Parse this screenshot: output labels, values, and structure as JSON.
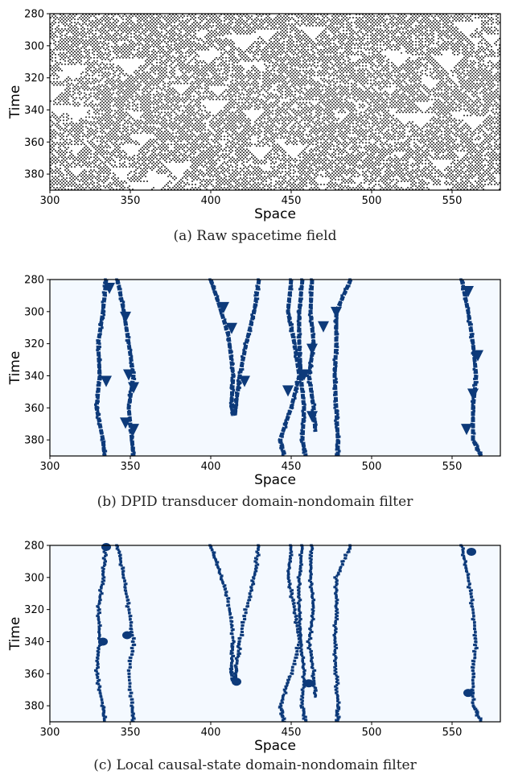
{
  "chart_data": [
    {
      "type": "heatmap",
      "panel_caption": "(a) Raw spacetime field",
      "xlabel": "Space",
      "ylabel": "Time",
      "xlim": [
        300,
        580
      ],
      "ylim": [
        390,
        280
      ],
      "xticks": [
        300,
        350,
        400,
        450,
        500,
        550
      ],
      "yticks": [
        280,
        300,
        320,
        340,
        360,
        380
      ],
      "colors": {
        "on": "#000000",
        "off": "#ffffff"
      },
      "description_of_values": "binary cellular automaton spacetime field, black dots and white triangles"
    },
    {
      "type": "heatmap",
      "panel_caption": "(b) DPID transducer domain-nondomain filter",
      "xlabel": "Space",
      "ylabel": "Time",
      "xlim": [
        300,
        580
      ],
      "ylim": [
        390,
        280
      ],
      "xticks": [
        300,
        350,
        400,
        450,
        500,
        550
      ],
      "yticks": [
        280,
        300,
        320,
        340,
        360,
        380
      ],
      "colors": {
        "background": "#f4f9ff",
        "defect": "#0d3a7a"
      },
      "defect_paths": [
        {
          "points": [
            [
              335,
              280
            ],
            [
              333,
              300
            ],
            [
              330,
              320
            ],
            [
              331,
              340
            ],
            [
              329,
              360
            ],
            [
              333,
              380
            ],
            [
              334,
              390
            ]
          ]
        },
        {
          "points": [
            [
              342,
              280
            ],
            [
              346,
              300
            ],
            [
              349,
              320
            ],
            [
              352,
              340
            ],
            [
              349,
              360
            ],
            [
              351,
              380
            ],
            [
              352,
              390
            ]
          ]
        },
        {
          "points": [
            [
              400,
              280
            ],
            [
              405,
              295
            ],
            [
              411,
              315
            ],
            [
              414,
              340
            ],
            [
              413,
              355
            ],
            [
              414,
              365
            ]
          ]
        },
        {
          "points": [
            [
              430,
              280
            ],
            [
              427,
              300
            ],
            [
              422,
              320
            ],
            [
              418,
              340
            ],
            [
              416,
              355
            ],
            [
              415,
              365
            ]
          ]
        },
        {
          "points": [
            [
              450,
              280
            ],
            [
              448,
              300
            ],
            [
              452,
              320
            ],
            [
              455,
              340
            ],
            [
              450,
              360
            ],
            [
              443,
              380
            ],
            [
              446,
              390
            ]
          ]
        },
        {
          "points": [
            [
              457,
              280
            ],
            [
              455,
              300
            ],
            [
              455,
              320
            ],
            [
              456,
              340
            ],
            [
              458,
              360
            ],
            [
              457,
              380
            ],
            [
              459,
              390
            ]
          ]
        },
        {
          "points": [
            [
              463,
              280
            ],
            [
              462,
              300
            ],
            [
              464,
              320
            ],
            [
              461,
              340
            ],
            [
              464,
              360
            ],
            [
              465,
              375
            ]
          ]
        },
        {
          "points": [
            [
              487,
              280
            ],
            [
              478,
              300
            ],
            [
              478,
              320
            ],
            [
              477,
              340
            ],
            [
              478,
              360
            ],
            [
              479,
              380
            ],
            [
              479,
              390
            ]
          ]
        },
        {
          "points": [
            [
              556,
              280
            ],
            [
              560,
              300
            ],
            [
              563,
              320
            ],
            [
              565,
              340
            ],
            [
              563,
              360
            ],
            [
              563,
              380
            ],
            [
              568,
              390
            ]
          ]
        }
      ],
      "triangle_markers": [
        [
          337,
          282
        ],
        [
          335,
          340
        ],
        [
          347,
          300
        ],
        [
          349,
          336
        ],
        [
          352,
          344
        ],
        [
          347,
          366
        ],
        [
          352,
          370
        ],
        [
          408,
          294
        ],
        [
          413,
          307
        ],
        [
          421,
          340
        ],
        [
          448,
          346
        ],
        [
          458,
          336
        ],
        [
          463,
          320
        ],
        [
          470,
          306
        ],
        [
          463,
          362
        ],
        [
          478,
          297
        ],
        [
          560,
          284
        ],
        [
          566,
          324
        ],
        [
          559,
          370
        ],
        [
          563,
          348
        ]
      ]
    },
    {
      "type": "heatmap",
      "panel_caption": "(c) Local causal-state domain-nondomain filter",
      "xlabel": "Space",
      "ylabel": "Time",
      "xlim": [
        300,
        580
      ],
      "ylim": [
        390,
        280
      ],
      "xticks": [
        300,
        350,
        400,
        450,
        500,
        550
      ],
      "yticks": [
        280,
        300,
        320,
        340,
        360,
        380
      ],
      "colors": {
        "background": "#f4f9ff",
        "defect": "#0d3a7a"
      },
      "defect_paths": [
        {
          "points": [
            [
              335,
              280
            ],
            [
              333,
              300
            ],
            [
              330,
              320
            ],
            [
              331,
              340
            ],
            [
              329,
              360
            ],
            [
              333,
              380
            ],
            [
              334,
              390
            ]
          ]
        },
        {
          "points": [
            [
              342,
              280
            ],
            [
              346,
              300
            ],
            [
              349,
              320
            ],
            [
              352,
              340
            ],
            [
              349,
              360
            ],
            [
              351,
              380
            ],
            [
              352,
              390
            ]
          ]
        },
        {
          "points": [
            [
              400,
              280
            ],
            [
              405,
              295
            ],
            [
              411,
              315
            ],
            [
              414,
              340
            ],
            [
              413,
              355
            ],
            [
              414,
              365
            ]
          ]
        },
        {
          "points": [
            [
              430,
              280
            ],
            [
              427,
              300
            ],
            [
              422,
              320
            ],
            [
              418,
              340
            ],
            [
              416,
              355
            ],
            [
              415,
              365
            ]
          ]
        },
        {
          "points": [
            [
              450,
              280
            ],
            [
              448,
              300
            ],
            [
              452,
              320
            ],
            [
              455,
              340
            ],
            [
              450,
              360
            ],
            [
              443,
              380
            ],
            [
              446,
              390
            ]
          ]
        },
        {
          "points": [
            [
              457,
              280
            ],
            [
              455,
              300
            ],
            [
              455,
              320
            ],
            [
              456,
              340
            ],
            [
              458,
              360
            ],
            [
              457,
              380
            ],
            [
              459,
              390
            ]
          ]
        },
        {
          "points": [
            [
              463,
              280
            ],
            [
              462,
              300
            ],
            [
              464,
              320
            ],
            [
              461,
              340
            ],
            [
              464,
              360
            ],
            [
              465,
              375
            ]
          ]
        },
        {
          "points": [
            [
              487,
              280
            ],
            [
              478,
              300
            ],
            [
              478,
              320
            ],
            [
              477,
              340
            ],
            [
              478,
              360
            ],
            [
              479,
              380
            ],
            [
              479,
              390
            ]
          ]
        },
        {
          "points": [
            [
              556,
              280
            ],
            [
              560,
              300
            ],
            [
              563,
              320
            ],
            [
              565,
              340
            ],
            [
              563,
              360
            ],
            [
              563,
              380
            ],
            [
              568,
              390
            ]
          ]
        }
      ],
      "blob_markers": [
        [
          335,
          281
        ],
        [
          333,
          340
        ],
        [
          348,
          336
        ],
        [
          416,
          365
        ],
        [
          461,
          366
        ],
        [
          562,
          284
        ],
        [
          560,
          372
        ]
      ]
    }
  ]
}
